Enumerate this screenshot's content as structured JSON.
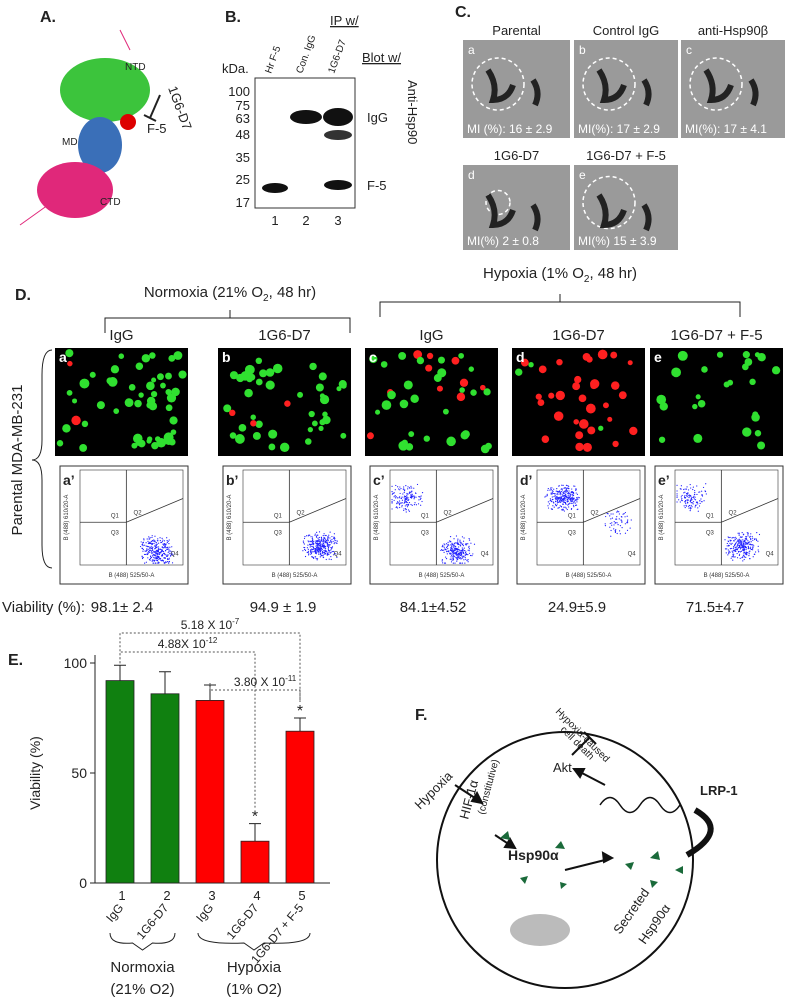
{
  "panel_a": {
    "label": "A.",
    "domains": [
      "NTD",
      "MD",
      "CTD"
    ],
    "antibody": "1G6-D7",
    "fragment": "F-5"
  },
  "panel_b": {
    "label": "B.",
    "ip_header": "IP w/",
    "blot_header": "Blot w/",
    "kda_label": "kDa.",
    "lanes": [
      "Hr F-5",
      "Con. IgG",
      "1G6-D7"
    ],
    "lane_numbers": [
      "1",
      "2",
      "3"
    ],
    "markers": [
      "100",
      "75",
      "63",
      "48",
      "35",
      "25",
      "17"
    ],
    "bands": [
      "IgG",
      "F-5"
    ],
    "antibody": "Anti-Hsp90"
  },
  "panel_c": {
    "label": "C.",
    "images": [
      {
        "letter": "a",
        "title": "Parental",
        "mi": "MI (%): 16 ± 2.9"
      },
      {
        "letter": "b",
        "title": "Control IgG",
        "mi": "MI(%): 17 ± 2.9"
      },
      {
        "letter": "c",
        "title": "anti-Hsp90β",
        "mi": "MI(%): 17 ± 4.1"
      },
      {
        "letter": "d",
        "title": "1G6-D7",
        "mi": "MI(%) 2 ± 0.8"
      },
      {
        "letter": "e",
        "title": "1G6-D7 + F-5",
        "mi": "MI(%) 15 ± 3.9"
      }
    ]
  },
  "panel_d": {
    "label": "D.",
    "groups": [
      {
        "before": "Normoxia (21% O",
        "sub": "2",
        "after": ", 48 hr)"
      },
      {
        "before": "Hypoxia (1% O",
        "sub": "2",
        "after": ", 48 hr)"
      }
    ],
    "columns": [
      {
        "title": "IgG",
        "letter": "a",
        "flow_letter": "a’",
        "viability": "98.1± 2.4"
      },
      {
        "title": "1G6-D7",
        "letter": "b",
        "flow_letter": "b’",
        "viability": "94.9 ± 1.9"
      },
      {
        "title": "IgG",
        "letter": "c",
        "flow_letter": "c’",
        "viability": "84.1±4.52"
      },
      {
        "title": "1G6-D7",
        "letter": "d",
        "flow_letter": "d’",
        "viability": "24.9±5.9"
      },
      {
        "title": "1G6-D7 + F-5",
        "letter": "e",
        "flow_letter": "e’",
        "viability": "71.5±4.7"
      }
    ],
    "row_label": "Parental MDA-MB-231",
    "viability_label": "Viability (%):",
    "flow_x_label": "B (488) 525/50-A",
    "flow_y_label": "B (488) 610/20-A",
    "quadrants": [
      "Q1",
      "Q2",
      "Q3",
      "Q4"
    ]
  },
  "chart_data": {
    "type": "bar",
    "panel_label": "E.",
    "ylabel": "Viability (%)",
    "categories": [
      "1",
      "2",
      "3",
      "4",
      "5"
    ],
    "treatments": [
      "IgG",
      "1G6-D7",
      "IgG",
      "1G6-D7",
      "1G6-D7 + F-5"
    ],
    "values": [
      92,
      86,
      83,
      19,
      69
    ],
    "errors": [
      7,
      10,
      7,
      8,
      6
    ],
    "colors": [
      "#108010",
      "#108010",
      "#ff0000",
      "#ff0000",
      "#ff0000"
    ],
    "ylim": [
      0,
      100
    ],
    "yticks": [
      0,
      50,
      100
    ],
    "stars": [
      {
        "category": "4",
        "text": "*"
      },
      {
        "category": "5",
        "text": "*"
      }
    ],
    "brackets": [
      {
        "from": "1",
        "to": "4",
        "text": "4.88X 10",
        "exponent": "-12"
      },
      {
        "from": "1",
        "to": "5",
        "text": "5.18 X 10",
        "exponent": "-7"
      },
      {
        "from": "3",
        "to": "5",
        "text": "3.80 X 10",
        "exponent": "-11"
      }
    ],
    "groups": [
      {
        "name": "Normoxia",
        "condition": "(21% O2)",
        "color": "#108010"
      },
      {
        "name": "Hypoxia",
        "condition": "(1% O2)",
        "color": "#ff0000"
      }
    ]
  },
  "panel_f": {
    "label": "F.",
    "hypoxia": "Hypoxia",
    "hif": "HIF-1α",
    "hif_note": "(constitutive)",
    "hsp90": "Hsp90α",
    "akt": "Akt",
    "death": "Hypoxia-caused",
    "death2": "cell death",
    "receptor": "LRP-1",
    "secreted": "Secreted",
    "secreted2": "Hsp90α"
  }
}
